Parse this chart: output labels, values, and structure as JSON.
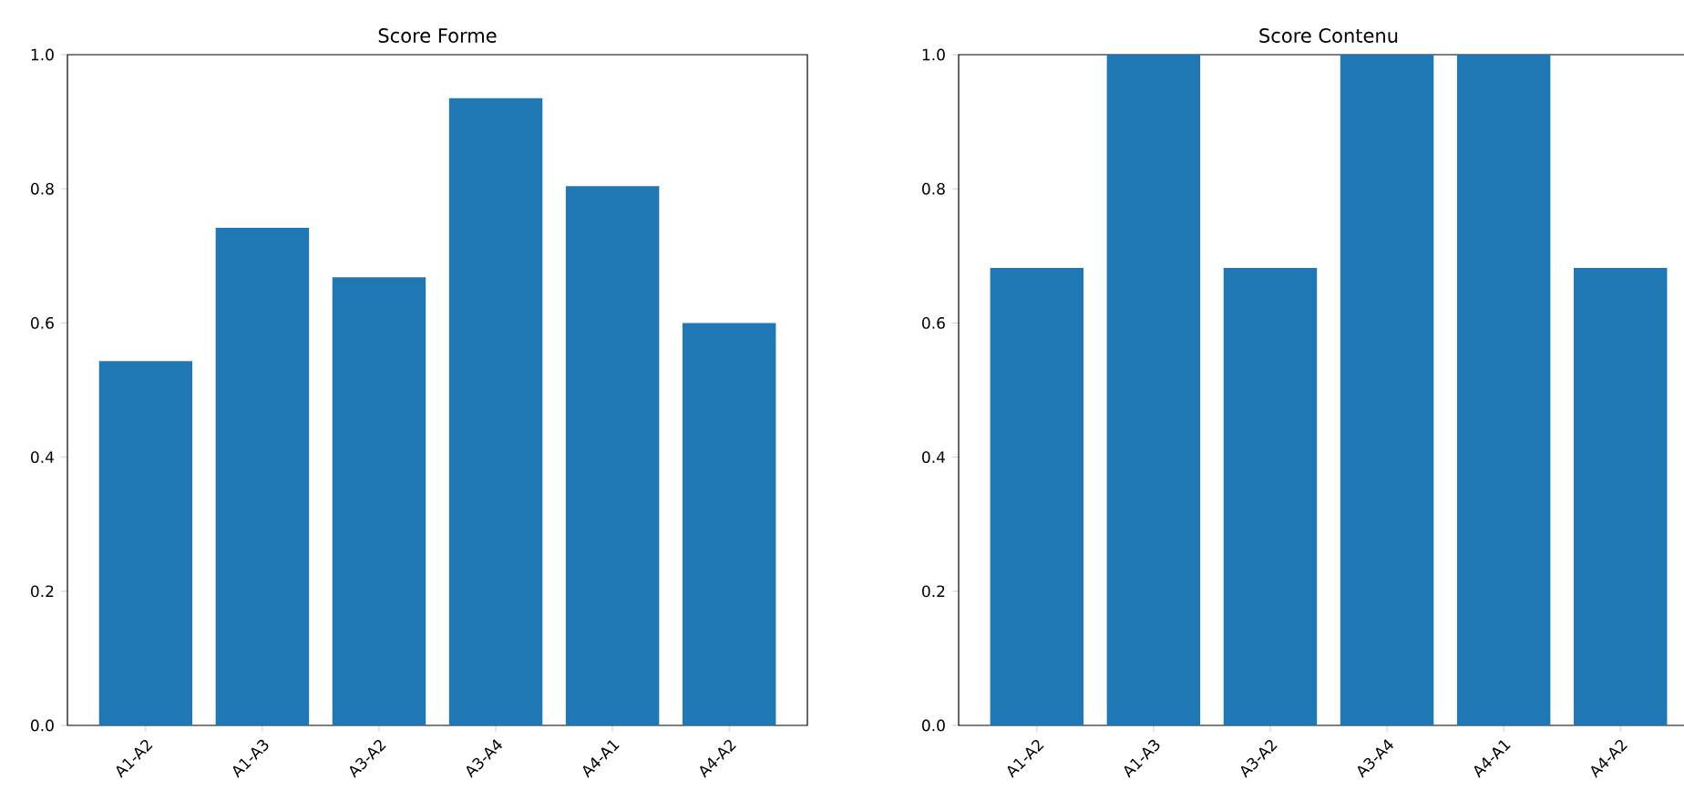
{
  "chart_data": [
    {
      "type": "bar",
      "title": "Score Forme",
      "categories": [
        "A1-A2",
        "A1-A3",
        "A3-A2",
        "A3-A4",
        "A4-A1",
        "A4-A2"
      ],
      "values": [
        0.543,
        0.742,
        0.668,
        0.935,
        0.804,
        0.6
      ],
      "color": "#1f77b4",
      "ylim": [
        0,
        1
      ],
      "yticks": [
        {
          "value": 0,
          "label": "0.0"
        },
        {
          "value": 0.2,
          "label": "0.2"
        },
        {
          "value": 0.4,
          "label": "0.4"
        },
        {
          "value": 0.6,
          "label": "0.6"
        },
        {
          "value": 0.8,
          "label": "0.8"
        },
        {
          "value": 1,
          "label": "1.0"
        }
      ]
    },
    {
      "type": "bar",
      "title": "Score Contenu",
      "categories": [
        "A1-A2",
        "A1-A3",
        "A3-A2",
        "A3-A4",
        "A4-A1",
        "A4-A2"
      ],
      "values": [
        0.682,
        1,
        0.682,
        1,
        1,
        0.682
      ],
      "color": "#1f77b4",
      "ylim": [
        0,
        1
      ],
      "yticks": [
        {
          "value": 0,
          "label": "0.0"
        },
        {
          "value": 0.2,
          "label": "0.2"
        },
        {
          "value": 0.4,
          "label": "0.4"
        },
        {
          "value": 0.6,
          "label": "0.6"
        },
        {
          "value": 0.8,
          "label": "0.8"
        },
        {
          "value": 1,
          "label": "1.0"
        }
      ]
    }
  ]
}
